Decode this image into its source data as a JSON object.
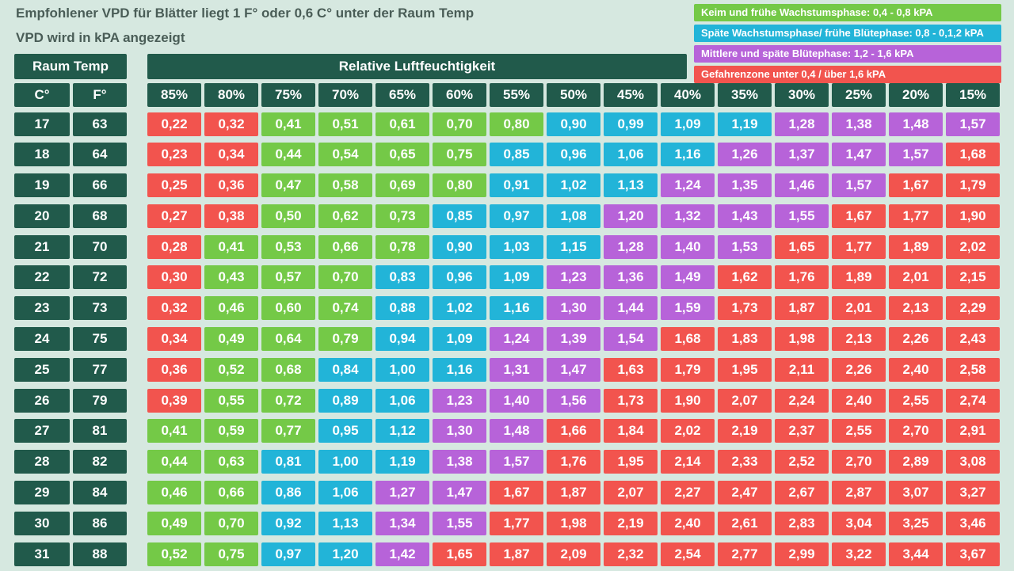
{
  "header": {
    "title": "Empfohlener VPD für Blätter liegt 1 F° oder 0,6 C° unter der Raum Temp",
    "subtitle": "VPD wird in kPA angezeigt"
  },
  "colors": {
    "G": "#74C947",
    "C": "#22B4D8",
    "P": "#B763D9",
    "R": "#F2544E",
    "header_bg": "#215A4B",
    "page_bg": "#D6E8E0",
    "title_text": "#4A5D57"
  },
  "legend": {
    "items": [
      {
        "label": "Keim und frühe Wachstumsphase: 0,4 - 0,8 kPA",
        "color": "G"
      },
      {
        "label": "Späte Wachstumsphase/ frühe Blütephase: 0,8 - 0,1,2 kPA",
        "color": "C"
      },
      {
        "label": "Mittlere und späte Blütephase: 1,2 - 1,6 kPA",
        "color": "P"
      },
      {
        "label": "Gefahrenzone unter 0,4 / über 1,6 kPA",
        "color": "R"
      }
    ]
  },
  "table": {
    "room_temp_label": "Raum Temp",
    "c_label": "C°",
    "f_label": "F°",
    "humidity_label": "Relative Luftfeuchtigkeit",
    "humidity_headers": [
      "85%",
      "80%",
      "75%",
      "70%",
      "65%",
      "60%",
      "55%",
      "50%",
      "45%",
      "40%",
      "35%",
      "30%",
      "25%",
      "20%",
      "15%"
    ],
    "rows": [
      {
        "c": "17",
        "f": "63",
        "values": [
          "0,22",
          "0,32",
          "0,41",
          "0,51",
          "0,61",
          "0,70",
          "0,80",
          "0,90",
          "0,99",
          "1,09",
          "1,19",
          "1,28",
          "1,38",
          "1,48",
          "1,57"
        ],
        "colors": "RRGGGGGCCCCPPPP"
      },
      {
        "c": "18",
        "f": "64",
        "values": [
          "0,23",
          "0,34",
          "0,44",
          "0,54",
          "0,65",
          "0,75",
          "0,85",
          "0,96",
          "1,06",
          "1,16",
          "1,26",
          "1,37",
          "1,47",
          "1,57",
          "1,68"
        ],
        "colors": "RRGGGGCCCCPPPPR"
      },
      {
        "c": "19",
        "f": "66",
        "values": [
          "0,25",
          "0,36",
          "0,47",
          "0,58",
          "0,69",
          "0,80",
          "0,91",
          "1,02",
          "1,13",
          "1,24",
          "1,35",
          "1,46",
          "1,57",
          "1,67",
          "1,79"
        ],
        "colors": "RRGGGGCCCPPPPRR"
      },
      {
        "c": "20",
        "f": "68",
        "values": [
          "0,27",
          "0,38",
          "0,50",
          "0,62",
          "0,73",
          "0,85",
          "0,97",
          "1,08",
          "1,20",
          "1,32",
          "1,43",
          "1,55",
          "1,67",
          "1,77",
          "1,90"
        ],
        "colors": "RRGGGCCCPPPPRRR"
      },
      {
        "c": "21",
        "f": "70",
        "values": [
          "0,28",
          "0,41",
          "0,53",
          "0,66",
          "0,78",
          "0,90",
          "1,03",
          "1,15",
          "1,28",
          "1,40",
          "1,53",
          "1,65",
          "1,77",
          "1,89",
          "2,02"
        ],
        "colors": "RGGGGCCCPPPRRRR"
      },
      {
        "c": "22",
        "f": "72",
        "values": [
          "0,30",
          "0,43",
          "0,57",
          "0,70",
          "0,83",
          "0,96",
          "1,09",
          "1,23",
          "1,36",
          "1,49",
          "1,62",
          "1,76",
          "1,89",
          "2,01",
          "2,15"
        ],
        "colors": "RGGGCCCPPPRRRRR"
      },
      {
        "c": "23",
        "f": "73",
        "values": [
          "0,32",
          "0,46",
          "0,60",
          "0,74",
          "0,88",
          "1,02",
          "1,16",
          "1,30",
          "1,44",
          "1,59",
          "1,73",
          "1,87",
          "2,01",
          "2,13",
          "2,29"
        ],
        "colors": "RGGGCCCPPPRRRRR"
      },
      {
        "c": "24",
        "f": "75",
        "values": [
          "0,34",
          "0,49",
          "0,64",
          "0,79",
          "0,94",
          "1,09",
          "1,24",
          "1,39",
          "1,54",
          "1,68",
          "1,83",
          "1,98",
          "2,13",
          "2,26",
          "2,43"
        ],
        "colors": "RGGGCCPPPRRRRRR"
      },
      {
        "c": "25",
        "f": "77",
        "values": [
          "0,36",
          "0,52",
          "0,68",
          "0,84",
          "1,00",
          "1,16",
          "1,31",
          "1,47",
          "1,63",
          "1,79",
          "1,95",
          "2,11",
          "2,26",
          "2,40",
          "2,58"
        ],
        "colors": "RGGCCCPPRRRRRRR"
      },
      {
        "c": "26",
        "f": "79",
        "values": [
          "0,39",
          "0,55",
          "0,72",
          "0,89",
          "1,06",
          "1,23",
          "1,40",
          "1,56",
          "1,73",
          "1,90",
          "2,07",
          "2,24",
          "2,40",
          "2,55",
          "2,74"
        ],
        "colors": "RGGCCPPPRRRRRRR"
      },
      {
        "c": "27",
        "f": "81",
        "values": [
          "0,41",
          "0,59",
          "0,77",
          "0,95",
          "1,12",
          "1,30",
          "1,48",
          "1,66",
          "1,84",
          "2,02",
          "2,19",
          "2,37",
          "2,55",
          "2,70",
          "2,91"
        ],
        "colors": "GGGCCPPRRRRRRRR"
      },
      {
        "c": "28",
        "f": "82",
        "values": [
          "0,44",
          "0,63",
          "0,81",
          "1,00",
          "1,19",
          "1,38",
          "1,57",
          "1,76",
          "1,95",
          "2,14",
          "2,33",
          "2,52",
          "2,70",
          "2,89",
          "3,08"
        ],
        "colors": "GGCCCPPRRRRRRRR"
      },
      {
        "c": "29",
        "f": "84",
        "values": [
          "0,46",
          "0,66",
          "0,86",
          "1,06",
          "1,27",
          "1,47",
          "1,67",
          "1,87",
          "2,07",
          "2,27",
          "2,47",
          "2,67",
          "2,87",
          "3,07",
          "3,27"
        ],
        "colors": "GGCCPPRRRRRRRRR"
      },
      {
        "c": "30",
        "f": "86",
        "values": [
          "0,49",
          "0,70",
          "0,92",
          "1,13",
          "1,34",
          "1,55",
          "1,77",
          "1,98",
          "2,19",
          "2,40",
          "2,61",
          "2,83",
          "3,04",
          "3,25",
          "3,46"
        ],
        "colors": "GGCCPPRRRRRRRRR"
      },
      {
        "c": "31",
        "f": "88",
        "values": [
          "0,52",
          "0,75",
          "0,97",
          "1,20",
          "1,42",
          "1,65",
          "1,87",
          "2,09",
          "2,32",
          "2,54",
          "2,77",
          "2,99",
          "3,22",
          "3,44",
          "3,67"
        ],
        "colors": "GGCCPRRRRRRRRRR"
      }
    ]
  },
  "chart_data": {
    "type": "heatmap",
    "title": "Empfohlener VPD für Blätter liegt 1 F° oder 0,6 C° unter der Raum Temp",
    "subtitle": "VPD wird in kPA angezeigt",
    "unit": "kPA",
    "x_label": "Relative Luftfeuchtigkeit",
    "x_categories": [
      "85%",
      "80%",
      "75%",
      "70%",
      "65%",
      "60%",
      "55%",
      "50%",
      "45%",
      "40%",
      "35%",
      "30%",
      "25%",
      "20%",
      "15%"
    ],
    "y_label": "Raum Temp",
    "y_categories_celsius": [
      17,
      18,
      19,
      20,
      21,
      22,
      23,
      24,
      25,
      26,
      27,
      28,
      29,
      30,
      31
    ],
    "y_categories_fahrenheit": [
      63,
      64,
      66,
      68,
      70,
      72,
      73,
      75,
      77,
      79,
      81,
      82,
      84,
      86,
      88
    ],
    "values": [
      [
        0.22,
        0.32,
        0.41,
        0.51,
        0.61,
        0.7,
        0.8,
        0.9,
        0.99,
        1.09,
        1.19,
        1.28,
        1.38,
        1.48,
        1.57
      ],
      [
        0.23,
        0.34,
        0.44,
        0.54,
        0.65,
        0.75,
        0.85,
        0.96,
        1.06,
        1.16,
        1.26,
        1.37,
        1.47,
        1.57,
        1.68
      ],
      [
        0.25,
        0.36,
        0.47,
        0.58,
        0.69,
        0.8,
        0.91,
        1.02,
        1.13,
        1.24,
        1.35,
        1.46,
        1.57,
        1.67,
        1.79
      ],
      [
        0.27,
        0.38,
        0.5,
        0.62,
        0.73,
        0.85,
        0.97,
        1.08,
        1.2,
        1.32,
        1.43,
        1.55,
        1.67,
        1.77,
        1.9
      ],
      [
        0.28,
        0.41,
        0.53,
        0.66,
        0.78,
        0.9,
        1.03,
        1.15,
        1.28,
        1.4,
        1.53,
        1.65,
        1.77,
        1.89,
        2.02
      ],
      [
        0.3,
        0.43,
        0.57,
        0.7,
        0.83,
        0.96,
        1.09,
        1.23,
        1.36,
        1.49,
        1.62,
        1.76,
        1.89,
        2.01,
        2.15
      ],
      [
        0.32,
        0.46,
        0.6,
        0.74,
        0.88,
        1.02,
        1.16,
        1.3,
        1.44,
        1.59,
        1.73,
        1.87,
        2.01,
        2.13,
        2.29
      ],
      [
        0.34,
        0.49,
        0.64,
        0.79,
        0.94,
        1.09,
        1.24,
        1.39,
        1.54,
        1.68,
        1.83,
        1.98,
        2.13,
        2.26,
        2.43
      ],
      [
        0.36,
        0.52,
        0.68,
        0.84,
        1.0,
        1.16,
        1.31,
        1.47,
        1.63,
        1.79,
        1.95,
        2.11,
        2.26,
        2.4,
        2.58
      ],
      [
        0.39,
        0.55,
        0.72,
        0.89,
        1.06,
        1.23,
        1.4,
        1.56,
        1.73,
        1.9,
        2.07,
        2.24,
        2.4,
        2.55,
        2.74
      ],
      [
        0.41,
        0.59,
        0.77,
        0.95,
        1.12,
        1.3,
        1.48,
        1.66,
        1.84,
        2.02,
        2.19,
        2.37,
        2.55,
        2.7,
        2.91
      ],
      [
        0.44,
        0.63,
        0.81,
        1.0,
        1.19,
        1.38,
        1.57,
        1.76,
        1.95,
        2.14,
        2.33,
        2.52,
        2.7,
        2.89,
        3.08
      ],
      [
        0.46,
        0.66,
        0.86,
        1.06,
        1.27,
        1.47,
        1.67,
        1.87,
        2.07,
        2.27,
        2.47,
        2.67,
        2.87,
        3.07,
        3.27
      ],
      [
        0.49,
        0.7,
        0.92,
        1.13,
        1.34,
        1.55,
        1.77,
        1.98,
        2.19,
        2.4,
        2.61,
        2.83,
        3.04,
        3.25,
        3.46
      ],
      [
        0.52,
        0.75,
        0.97,
        1.2,
        1.42,
        1.65,
        1.87,
        2.09,
        2.32,
        2.54,
        2.77,
        2.99,
        3.22,
        3.44,
        3.67
      ]
    ],
    "zones": [
      {
        "label": "Keim und frühe Wachstumsphase: 0,4 - 0,8 kPA",
        "color": "#74C947"
      },
      {
        "label": "Späte Wachstumsphase/ frühe Blütephase: 0,8 - 0,1,2 kPA",
        "color": "#22B4D8"
      },
      {
        "label": "Mittlere und späte Blütephase: 1,2 - 1,6 kPA",
        "color": "#B763D9"
      },
      {
        "label": "Gefahrenzone unter 0,4 / über 1,6 kPA",
        "color": "#F2544E"
      }
    ],
    "legend_position": "top-right",
    "grid": false
  }
}
